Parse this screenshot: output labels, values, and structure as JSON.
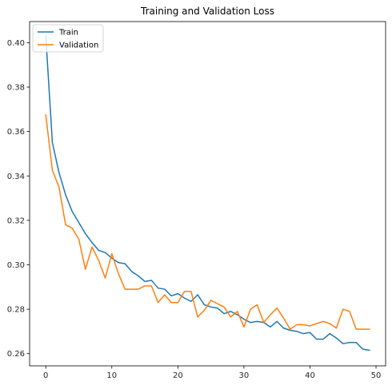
{
  "chart_data": {
    "type": "line",
    "title": "Training and Validation Loss",
    "xlabel": "",
    "ylabel": "",
    "xlim": [
      -2.45,
      51.45
    ],
    "ylim": [
      0.2545,
      0.4095
    ],
    "x_ticks": [
      0,
      10,
      20,
      30,
      40,
      50
    ],
    "y_ticks": [
      0.26,
      0.28,
      0.3,
      0.32,
      0.34,
      0.36,
      0.38,
      0.4
    ],
    "grid": false,
    "legend_position": "top-left",
    "x": [
      0,
      1,
      2,
      3,
      4,
      5,
      6,
      7,
      8,
      9,
      10,
      11,
      12,
      13,
      14,
      15,
      16,
      17,
      18,
      19,
      20,
      21,
      22,
      23,
      24,
      25,
      26,
      27,
      28,
      29,
      30,
      31,
      32,
      33,
      34,
      35,
      36,
      37,
      38,
      39,
      40,
      41,
      42,
      43,
      44,
      45,
      46,
      47,
      48,
      49
    ],
    "series": [
      {
        "name": "Train",
        "color": "#1f77b4",
        "values": [
          0.403,
          0.355,
          0.3415,
          0.3315,
          0.324,
          0.319,
          0.314,
          0.31,
          0.3065,
          0.3055,
          0.303,
          0.301,
          0.3005,
          0.297,
          0.295,
          0.2925,
          0.293,
          0.2895,
          0.289,
          0.286,
          0.287,
          0.285,
          0.2835,
          0.2865,
          0.282,
          0.281,
          0.2805,
          0.278,
          0.279,
          0.2775,
          0.2755,
          0.274,
          0.2745,
          0.274,
          0.272,
          0.2745,
          0.2715,
          0.2705,
          0.27,
          0.269,
          0.2695,
          0.2665,
          0.2665,
          0.269,
          0.267,
          0.2645,
          0.265,
          0.265,
          0.262,
          0.2615
        ]
      },
      {
        "name": "Validation",
        "color": "#ff7f0e",
        "values": [
          0.3675,
          0.3425,
          0.335,
          0.318,
          0.3165,
          0.3115,
          0.298,
          0.308,
          0.302,
          0.294,
          0.305,
          0.296,
          0.289,
          0.289,
          0.289,
          0.2905,
          0.2905,
          0.283,
          0.2865,
          0.283,
          0.283,
          0.288,
          0.288,
          0.2765,
          0.2795,
          0.284,
          0.2825,
          0.281,
          0.2765,
          0.279,
          0.272,
          0.28,
          0.282,
          0.274,
          0.2775,
          0.2805,
          0.276,
          0.271,
          0.273,
          0.273,
          0.2725,
          0.2735,
          0.2745,
          0.2735,
          0.2715,
          0.28,
          0.279,
          0.271,
          0.271,
          0.271
        ]
      }
    ]
  }
}
